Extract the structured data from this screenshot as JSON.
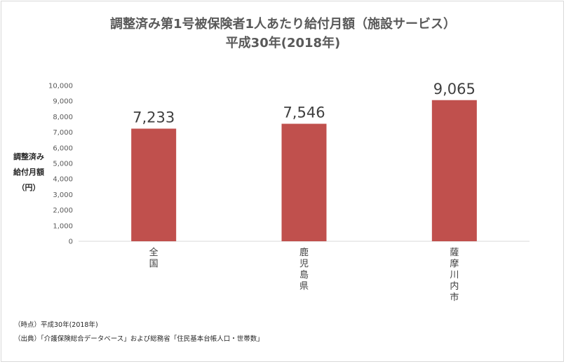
{
  "title_line1": "調整済み第1号被保険者1人あたり給付月額（施設サービス）",
  "title_line2": "平成30年(2018年)",
  "ylabel_lines": [
    "調整済み",
    "給付月額",
    "（円）"
  ],
  "footnote_time": "（時点）平成30年(2018年)",
  "footnote_source": "（出典）「介護保険総合データベース」および総務省「住民基本台帳人口・世帯数」",
  "colors": {
    "bar": "#c0504d",
    "axis_text": "#595959",
    "axis_line": "#d9d9d9"
  },
  "chart_data": {
    "type": "bar",
    "title": "調整済み第1号被保険者1人あたり給付月額（施設サービス）",
    "subtitle": "平成30年(2018年)",
    "ylabel": "調整済み給付月額（円）",
    "categories": [
      "全国",
      "鹿児島県",
      "薩摩川内市"
    ],
    "values": [
      7233,
      7546,
      9065
    ],
    "value_labels": [
      "7,233",
      "7,546",
      "9,065"
    ],
    "ylim": [
      0,
      10000
    ],
    "yticks": [
      0,
      1000,
      2000,
      3000,
      4000,
      5000,
      6000,
      7000,
      8000,
      9000,
      10000
    ],
    "ytick_labels": [
      "0",
      "1,000",
      "2,000",
      "3,000",
      "4,000",
      "5,000",
      "6,000",
      "7,000",
      "8,000",
      "9,000",
      "10,000"
    ],
    "grid": false,
    "legend": "none"
  }
}
